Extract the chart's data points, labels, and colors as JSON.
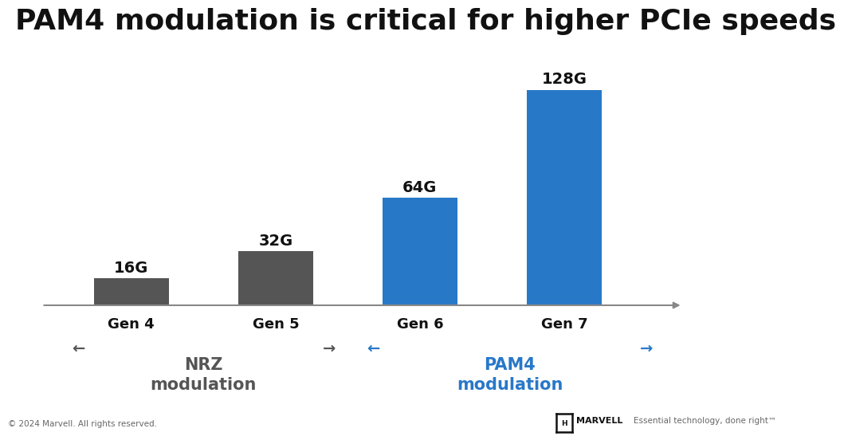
{
  "title": "PAM4 modulation is critical for higher PCIe speeds",
  "categories": [
    "Gen 4",
    "Gen 5",
    "Gen 6",
    "Gen 7"
  ],
  "values": [
    16,
    32,
    64,
    128
  ],
  "labels": [
    "16G",
    "32G",
    "64G",
    "128G"
  ],
  "bar_colors": [
    "#555555",
    "#555555",
    "#2878c8",
    "#2878c8"
  ],
  "nrz_color": "#555555",
  "pam4_color": "#2878c8",
  "title_fontsize": 26,
  "bar_label_fontsize": 14,
  "xtick_fontsize": 13,
  "annotation_fontsize": 15,
  "background_color": "#ffffff",
  "axis_color": "#888888",
  "footer_left": "© 2024 Marvell. All rights reserved.",
  "footer_right": "Essential technology, done right™",
  "nrz_label": "NRZ\nmodulation",
  "pam4_label": "PAM4\nmodulation"
}
